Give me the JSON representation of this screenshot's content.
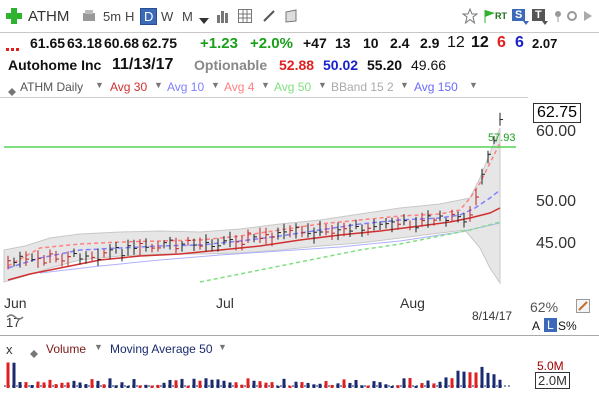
{
  "toolbar": {
    "symbol": "ATHM",
    "periods": [
      "5m",
      "H",
      "D",
      "W",
      "M"
    ],
    "active_period": "D",
    "badges": [
      "RT",
      "S",
      "T"
    ]
  },
  "quote": {
    "last": "61.65",
    "high": "63.18",
    "low": "60.68",
    "close": "62.75",
    "change": "+1.23",
    "change_pct": "+2.0%",
    "stats": [
      "+47",
      "13",
      "10",
      "2.4",
      "2.9"
    ],
    "count_a": "12",
    "count_b": "12",
    "count_c": "6",
    "count_d": "6",
    "ratio": "2.07"
  },
  "company": {
    "name": "Autohome Inc",
    "date": "11/13/17",
    "optionable": "Optionable",
    "v1": "52.88",
    "v2": "50.02",
    "v3": "55.20",
    "v4": "49.66"
  },
  "legend": {
    "daily": "ATHM Daily",
    "avg30": "Avg 30",
    "avg10": "Avg 10",
    "avg4": "Avg 4",
    "avg50": "Avg 50",
    "bband": "BBand 15 2",
    "avg150": "Avg 150"
  },
  "price_axis": {
    "current": "62.75",
    "ticks": [
      "60.00",
      "50.00",
      "45.00"
    ]
  },
  "line_label": "57.93",
  "x_axis": {
    "labels": [
      "Jun",
      "Jul",
      "Aug"
    ],
    "date": "8/14/17",
    "sub": "17"
  },
  "side": {
    "pct": "62%",
    "a": "A",
    "l": "L",
    "s": "S%"
  },
  "volume": {
    "close_x": "x",
    "label": "Volume",
    "ma_label": "Moving Average 50",
    "axis_top": "5.0M",
    "axis_box": "2.0M"
  },
  "colors": {
    "green": "#1aa01a",
    "red": "#e02020",
    "blue": "#1a22cc",
    "dark_red": "#a00000",
    "navy": "#1a2a6e",
    "avg30": "#d03030",
    "avg10": "#8080ff",
    "avg4": "#ff8080",
    "avg50": "#7fe07f",
    "bband": "#c8c8c8",
    "avg150": "#6a6aff",
    "hline": "#55d455"
  }
}
